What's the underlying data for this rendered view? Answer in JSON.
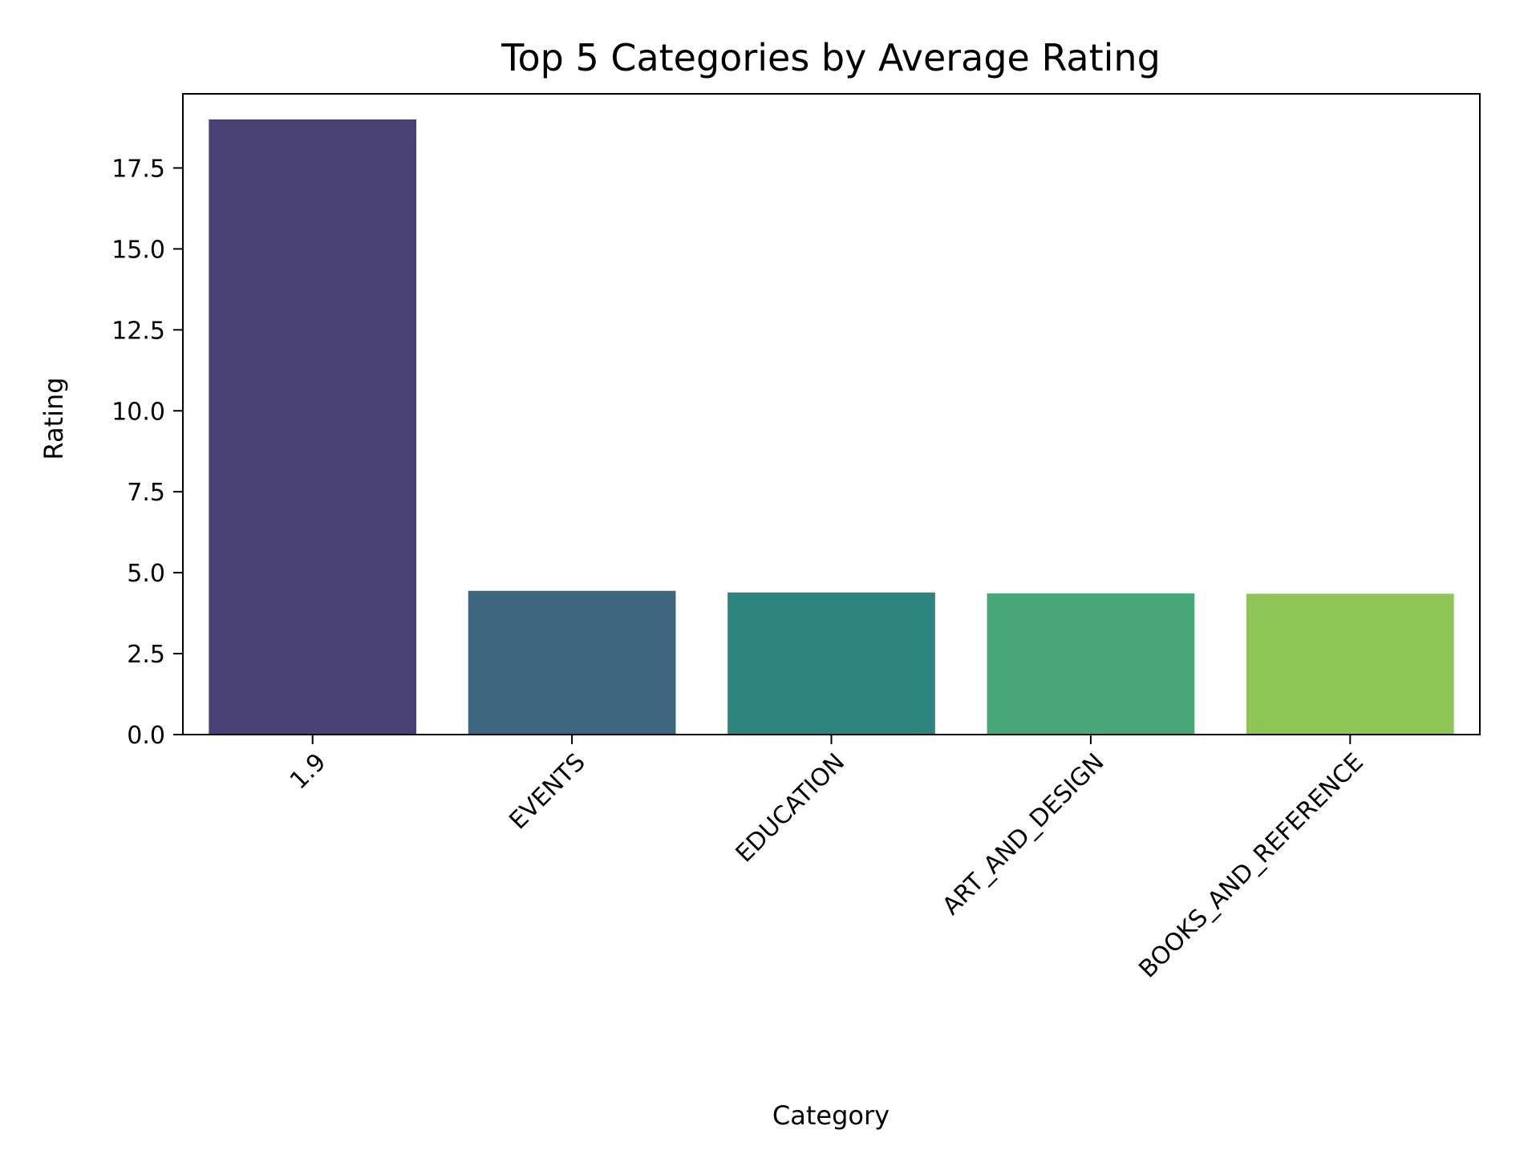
{
  "chart_data": {
    "type": "bar",
    "title": "Top 5 Categories by Average Rating",
    "xlabel": "Category",
    "ylabel": "Rating",
    "categories": [
      "1.9",
      "EVENTS",
      "EDUCATION",
      "ART_AND_DESIGN",
      "BOOKS_AND_REFERENCE"
    ],
    "values": [
      19.0,
      4.44,
      4.39,
      4.36,
      4.35
    ],
    "colors": [
      "#4a4276",
      "#3e667f",
      "#2e847e",
      "#49a878",
      "#8fc457"
    ],
    "ylim": [
      0,
      20
    ],
    "yticks": [
      "0.0",
      "2.5",
      "5.0",
      "7.5",
      "10.0",
      "12.5",
      "15.0",
      "17.5"
    ],
    "grid": false,
    "legend": "none"
  }
}
